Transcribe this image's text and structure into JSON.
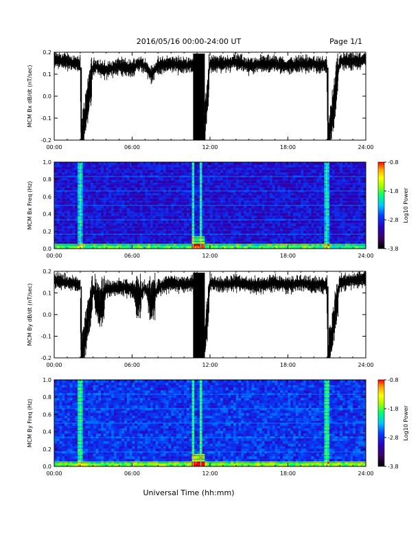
{
  "header": {
    "title": "2016/05/16  00:00-24:00 UT",
    "page": "Page 1/1"
  },
  "footer": {
    "xlabel": "Universal Time (hh:mm)"
  },
  "colors": {
    "trace": "#000000",
    "colormap": [
      "#000000",
      "#3a0060",
      "#2a00c0",
      "#0040ff",
      "#00c8ff",
      "#00ff70",
      "#a0ff00",
      "#ffff00",
      "#ffa000",
      "#ff0000"
    ]
  },
  "chart_data": [
    {
      "type": "line",
      "ylabel": "MCM Bx dB/dt (nT/sec)",
      "xlim": [
        "00:00",
        "24:00"
      ],
      "ylim": [
        -0.2,
        0.2
      ],
      "xticks": [
        "00:00",
        "06:00",
        "12:00",
        "18:00",
        "24:00"
      ],
      "yticks": [
        "-0.2",
        "-0.1",
        "0.0",
        "0.1",
        "0.2"
      ],
      "series": [
        {
          "x": [
            "00:00",
            "01:00",
            "02:00",
            "02:05",
            "03:00",
            "04:00",
            "05:00",
            "06:00",
            "06:30",
            "07:00",
            "07:30",
            "08:00",
            "09:00",
            "10:00",
            "10:40",
            "11:00",
            "11:15",
            "11:30",
            "12:00",
            "13:00",
            "14:00",
            "15:00",
            "16:00",
            "17:00",
            "18:00",
            "19:00",
            "20:00",
            "21:00",
            "21:05",
            "22:00",
            "23:00",
            "24:00"
          ],
          "values": [
            0.17,
            0.16,
            0.15,
            -0.2,
            0.14,
            0.12,
            0.14,
            0.13,
            0.15,
            0.14,
            0.1,
            0.14,
            0.15,
            0.14,
            0.15,
            0.05,
            -0.05,
            -0.2,
            0.15,
            0.15,
            0.16,
            0.14,
            0.15,
            0.15,
            0.14,
            0.15,
            0.15,
            0.14,
            -0.2,
            0.16,
            0.16,
            0.17
          ]
        }
      ]
    },
    {
      "type": "heatmap",
      "ylabel": "MCM Bx Freq (Hz)",
      "xlim": [
        "00:00",
        "24:00"
      ],
      "ylim": [
        0.0,
        1.0
      ],
      "xticks": [
        "00:00",
        "06:00",
        "12:00",
        "18:00",
        "24:00"
      ],
      "yticks": [
        "0.0",
        "0.2",
        "0.4",
        "0.6",
        "0.8",
        "1.0"
      ],
      "colorbar": {
        "label": "Log10 Power",
        "ticks": [
          "-0.8",
          "-1.8",
          "-2.8",
          "-3.8"
        ],
        "range": [
          -3.8,
          -0.8
        ]
      }
    },
    {
      "type": "line",
      "ylabel": "MCM By dB/dt (nT/sec)",
      "xlim": [
        "00:00",
        "24:00"
      ],
      "ylim": [
        -0.2,
        0.2
      ],
      "xticks": [
        "00:00",
        "06:00",
        "12:00",
        "18:00",
        "24:00"
      ],
      "yticks": [
        "-0.2",
        "-0.1",
        "0.0",
        "0.1",
        "0.2"
      ],
      "series": [
        {
          "x": [
            "00:00",
            "01:00",
            "02:00",
            "02:05",
            "03:00",
            "03:30",
            "04:00",
            "05:00",
            "06:00",
            "06:30",
            "07:00",
            "07:30",
            "08:00",
            "09:00",
            "10:00",
            "10:40",
            "11:00",
            "11:15",
            "11:30",
            "12:00",
            "13:00",
            "14:00",
            "15:00",
            "16:00",
            "17:00",
            "18:00",
            "19:00",
            "20:00",
            "21:00",
            "21:05",
            "22:00",
            "23:00",
            "24:00"
          ],
          "values": [
            0.16,
            0.15,
            0.14,
            -0.2,
            0.12,
            0.04,
            0.12,
            0.13,
            0.12,
            0.08,
            0.13,
            0.06,
            0.13,
            0.15,
            0.14,
            0.15,
            0.0,
            -0.1,
            -0.2,
            0.15,
            0.14,
            0.15,
            0.14,
            0.14,
            0.15,
            0.14,
            0.15,
            0.14,
            0.14,
            -0.2,
            0.15,
            0.16,
            0.17
          ]
        }
      ]
    },
    {
      "type": "heatmap",
      "ylabel": "MCM By Freq (Hz)",
      "xlim": [
        "00:00",
        "24:00"
      ],
      "ylim": [
        0.0,
        1.0
      ],
      "xticks": [
        "00:00",
        "06:00",
        "12:00",
        "18:00",
        "24:00"
      ],
      "yticks": [
        "0.0",
        "0.2",
        "0.4",
        "0.6",
        "0.8",
        "1.0"
      ],
      "colorbar": {
        "label": "Log10 Power",
        "ticks": [
          "-0.8",
          "-1.8",
          "-2.8",
          "-3.8"
        ],
        "range": [
          -3.8,
          -0.8
        ]
      }
    }
  ]
}
